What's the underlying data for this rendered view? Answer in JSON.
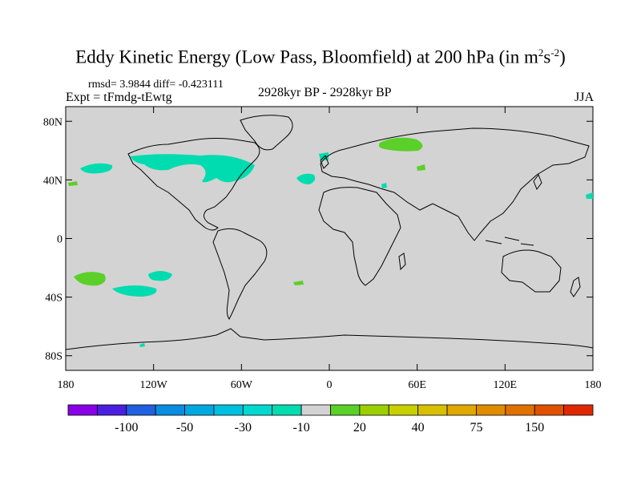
{
  "title": {
    "main": "Eddy Kinetic Energy (Low Pass, Bloomfield) at 200 hPa (in m",
    "sup1": "2",
    "mid": "s",
    "sup2": "-2",
    "close": ")"
  },
  "stats": "rmsd= 3.9844 diff= -0.423111",
  "experiment": "Expt = tFmdg-tEwtg",
  "period": "2928kyr BP - 2928kyr BP",
  "season": "JJA",
  "map": {
    "land_color": "#d3d3d3",
    "lat_ticks": [
      {
        "value": 80,
        "label": "80N"
      },
      {
        "value": 40,
        "label": "40N"
      },
      {
        "value": 0,
        "label": "0"
      },
      {
        "value": -40,
        "label": "40S"
      },
      {
        "value": -80,
        "label": "80S"
      }
    ],
    "lon_ticks": [
      {
        "value": -180,
        "label": "180"
      },
      {
        "value": -120,
        "label": "120W"
      },
      {
        "value": -60,
        "label": "60W"
      },
      {
        "value": 0,
        "label": "0"
      },
      {
        "value": 60,
        "label": "60E"
      },
      {
        "value": 120,
        "label": "120E"
      },
      {
        "value": 180,
        "label": "180"
      }
    ],
    "lat_range": [
      -90,
      90
    ],
    "lon_range": [
      -180,
      180
    ]
  },
  "colorbar": {
    "colors": [
      "#8a00e6",
      "#4a1fe0",
      "#2060e0",
      "#0a8ce0",
      "#00a8e0",
      "#00c0e0",
      "#00d8d0",
      "#00dcb0",
      "#d3d3d3",
      "#5ad028",
      "#9ad000",
      "#c8d000",
      "#d8c000",
      "#e0a800",
      "#e08c00",
      "#e07000",
      "#e05000",
      "#e02800"
    ],
    "labels": [
      {
        "after_box": 2,
        "text": "-100"
      },
      {
        "after_box": 4,
        "text": "-50"
      },
      {
        "after_box": 6,
        "text": "-30"
      },
      {
        "after_box": 8,
        "text": "-10"
      },
      {
        "after_box": 10,
        "text": "20"
      },
      {
        "after_box": 12,
        "text": "40"
      },
      {
        "after_box": 14,
        "text": "75"
      },
      {
        "after_box": 16,
        "text": "150"
      }
    ]
  }
}
